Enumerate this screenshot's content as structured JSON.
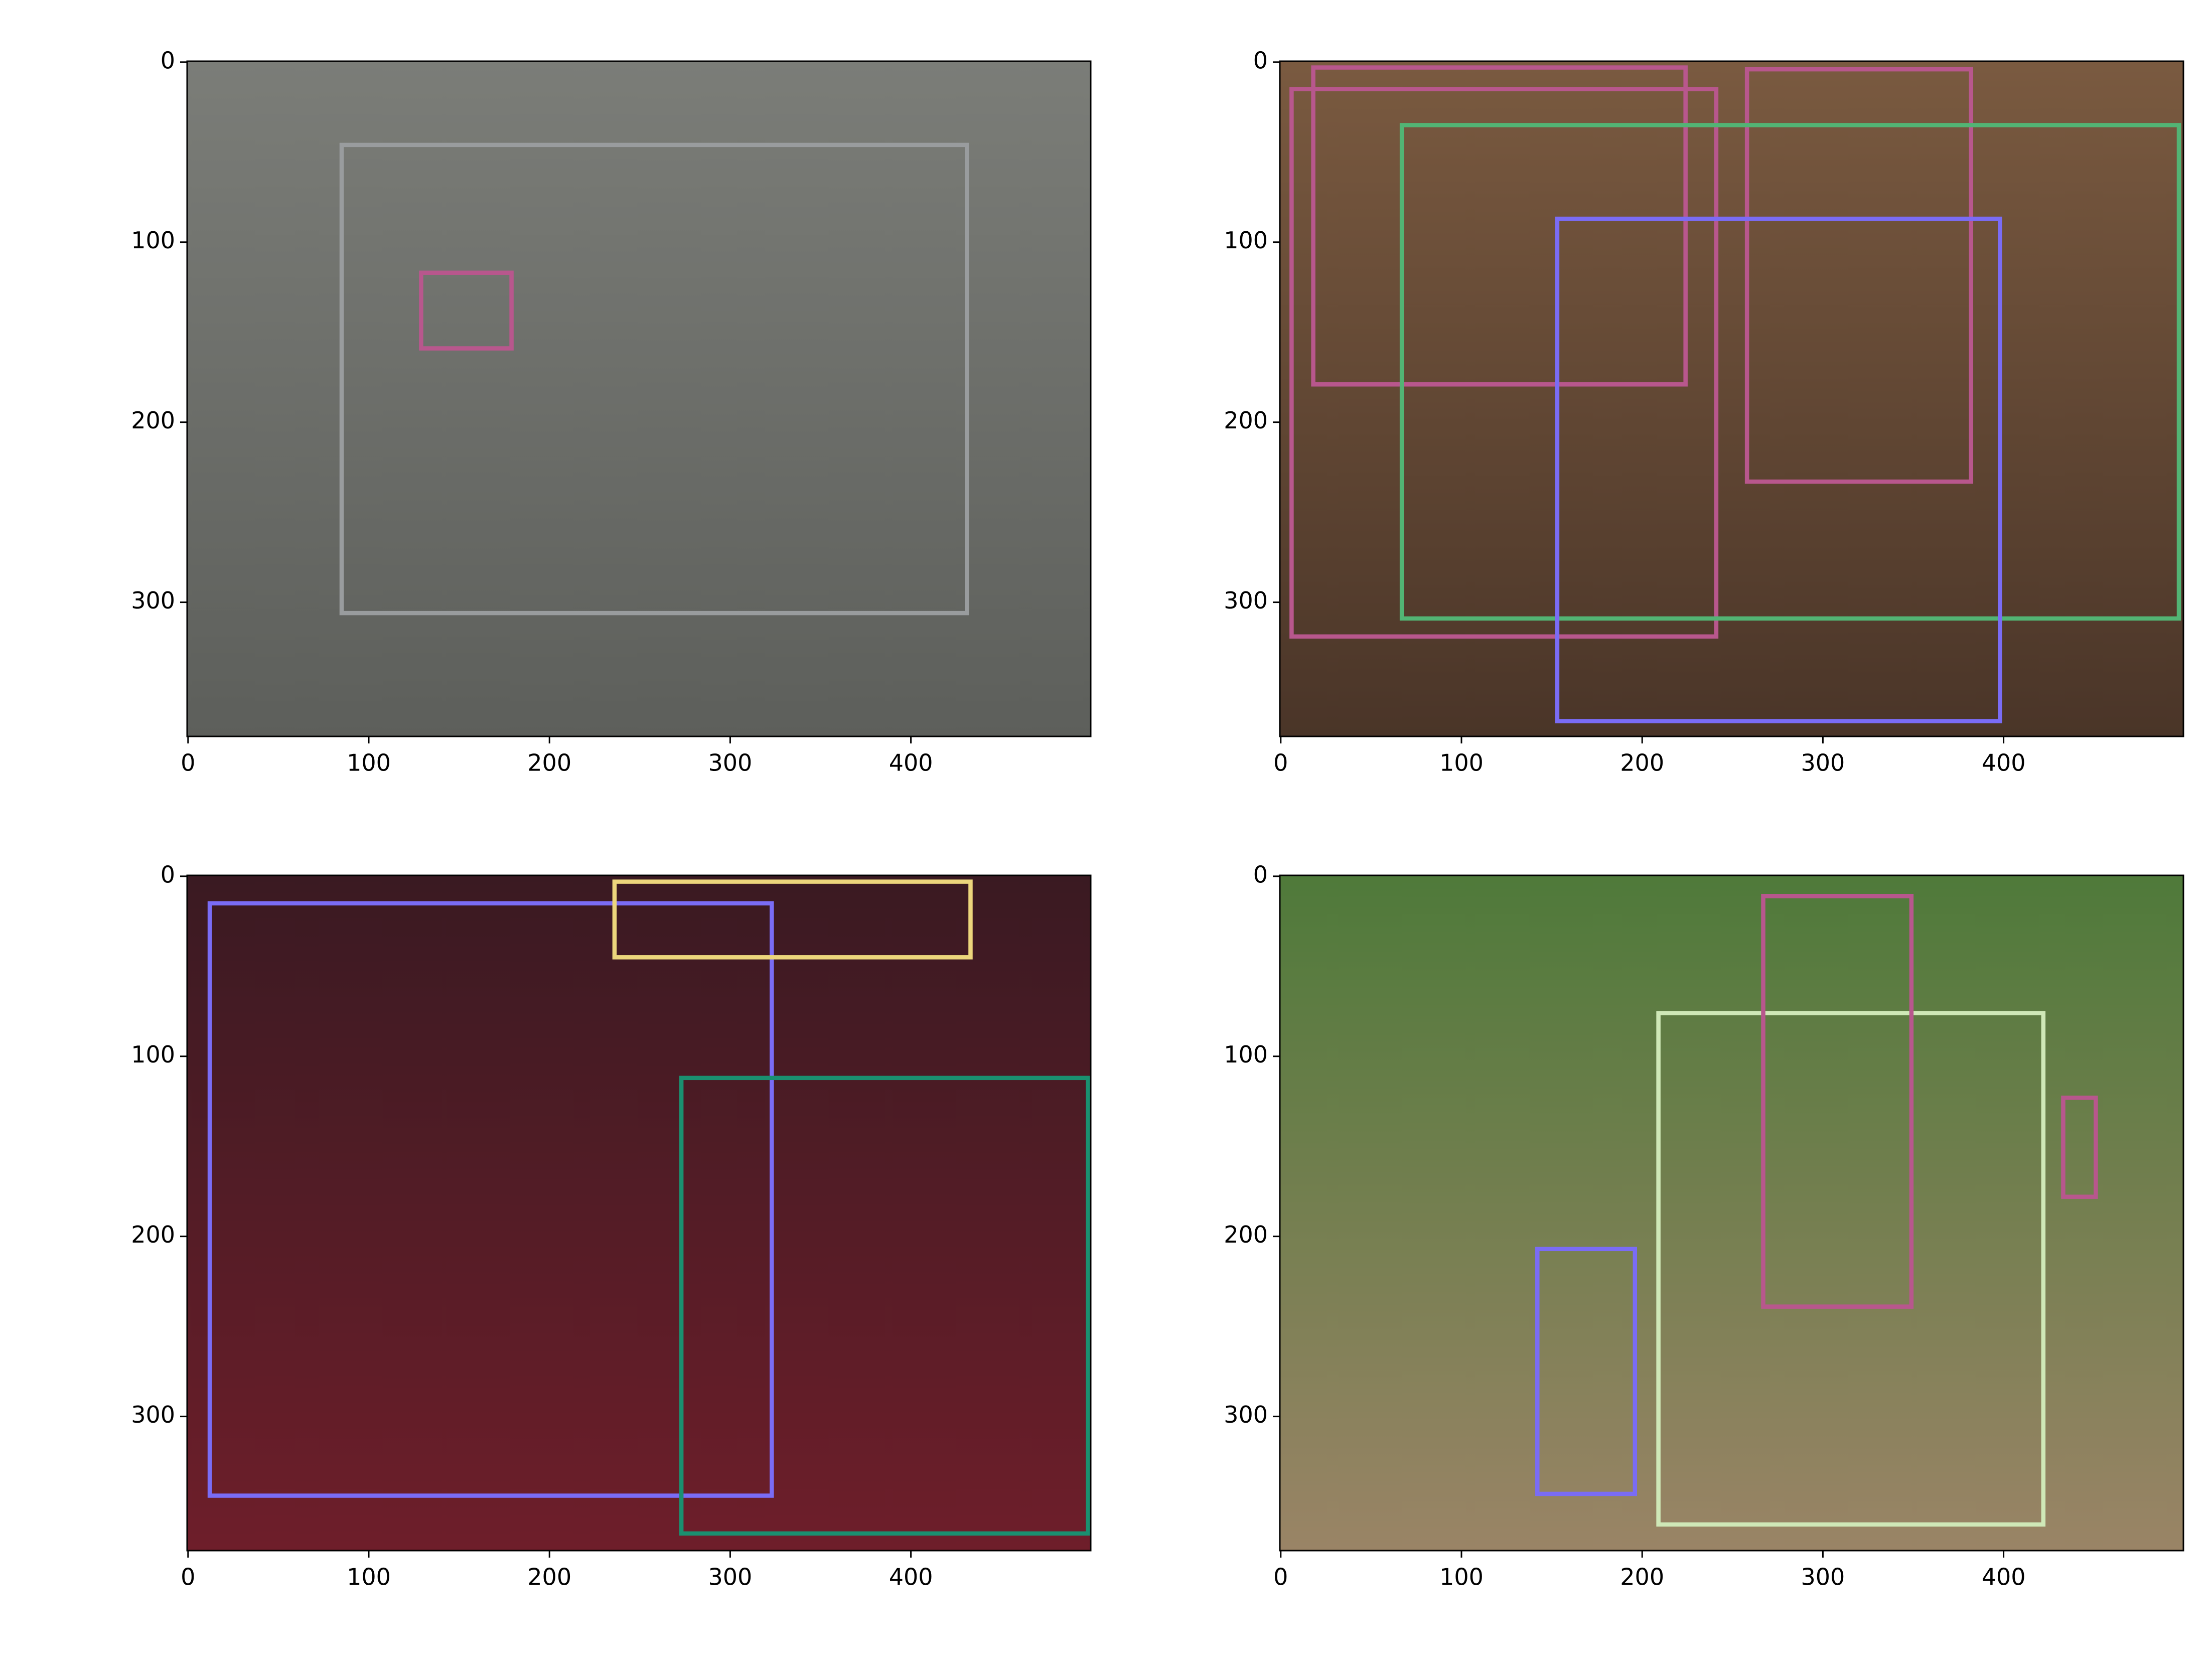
{
  "chart_data": [
    {
      "type": "bbox",
      "xlim": [
        -0.5,
        499.5
      ],
      "ylim": [
        374.5,
        -0.5
      ],
      "xticks": [
        0,
        100,
        200,
        300,
        400
      ],
      "yticks": [
        0,
        100,
        200,
        300
      ],
      "boxes": [
        {
          "color": "#999c9e",
          "x": [
            85,
            431
          ],
          "y": [
            46,
            306
          ]
        },
        {
          "color": "#b8578d",
          "x": [
            129,
            179
          ],
          "y": [
            117,
            159
          ]
        }
      ]
    },
    {
      "type": "bbox",
      "xlim": [
        -0.5,
        499.5
      ],
      "ylim": [
        374.5,
        -0.5
      ],
      "xticks": [
        0,
        100,
        200,
        300,
        400
      ],
      "yticks": [
        0,
        100,
        200,
        300
      ],
      "boxes": [
        {
          "color": "#b8578d",
          "x": [
            18,
            224
          ],
          "y": [
            3,
            179
          ]
        },
        {
          "color": "#b8578d",
          "x": [
            6,
            241
          ],
          "y": [
            15,
            319
          ]
        },
        {
          "color": "#b8578d",
          "x": [
            258,
            382
          ],
          "y": [
            4,
            233
          ]
        },
        {
          "color": "#52b474",
          "x": [
            67,
            497
          ],
          "y": [
            35,
            309
          ]
        },
        {
          "color": "#7a6cf5",
          "x": [
            153,
            398
          ],
          "y": [
            87,
            366
          ]
        }
      ]
    },
    {
      "type": "bbox",
      "xlim": [
        -0.5,
        499.5
      ],
      "ylim": [
        374.5,
        -0.5
      ],
      "xticks": [
        0,
        100,
        200,
        300,
        400
      ],
      "yticks": [
        0,
        100,
        200,
        300
      ],
      "boxes": [
        {
          "color": "#7a6cf5",
          "x": [
            12,
            323
          ],
          "y": [
            15,
            344
          ]
        },
        {
          "color": "#ecd67c",
          "x": [
            236,
            433
          ],
          "y": [
            3,
            45
          ]
        },
        {
          "color": "#1a9070",
          "x": [
            273,
            498
          ],
          "y": [
            112,
            365
          ]
        }
      ]
    },
    {
      "type": "bbox",
      "xlim": [
        -0.5,
        499.5
      ],
      "ylim": [
        374.5,
        -0.5
      ],
      "xticks": [
        0,
        100,
        200,
        300,
        400
      ],
      "yticks": [
        0,
        100,
        200,
        300
      ],
      "boxes": [
        {
          "color": "#cfe8b7",
          "x": [
            209,
            422
          ],
          "y": [
            76,
            360
          ]
        },
        {
          "color": "#b8578d",
          "x": [
            267,
            349
          ],
          "y": [
            11,
            239
          ]
        },
        {
          "color": "#b8578d",
          "x": [
            433,
            451
          ],
          "y": [
            123,
            178
          ]
        },
        {
          "color": "#7a6cf5",
          "x": [
            142,
            196
          ],
          "y": [
            207,
            343
          ]
        }
      ]
    }
  ]
}
